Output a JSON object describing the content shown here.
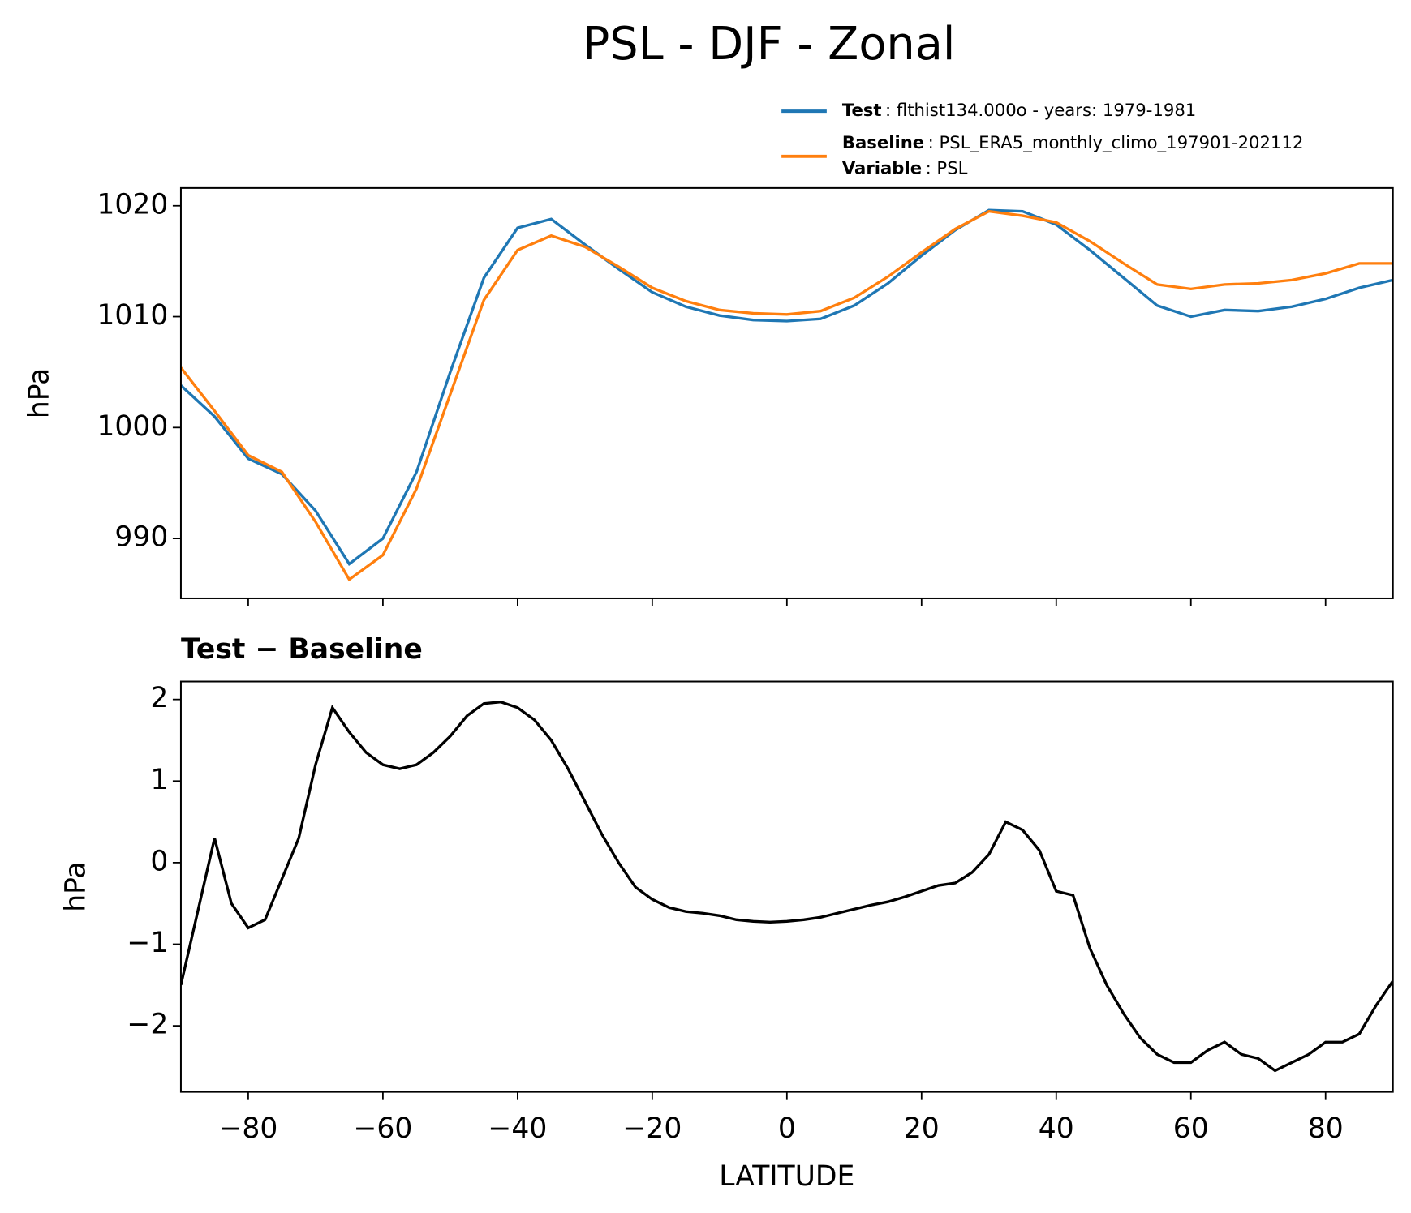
{
  "chart_data": [
    {
      "type": "line",
      "title": "PSL - DJF - Zonal",
      "ylabel": "hPa",
      "x": [
        -90,
        -85,
        -80,
        -75,
        -70,
        -65,
        -60,
        -55,
        -50,
        -45,
        -40,
        -35,
        -30,
        -25,
        -20,
        -15,
        -10,
        -5,
        0,
        5,
        10,
        15,
        20,
        25,
        30,
        35,
        40,
        45,
        50,
        55,
        60,
        65,
        70,
        75,
        80,
        85,
        90
      ],
      "series": [
        {
          "name": "Test",
          "color": "#1f77b4",
          "legend_lines": [
            {
              "key": "Test",
              "text": ": flthist134.000o - years: 1979-1981"
            }
          ],
          "values": [
            1003.8,
            1001,
            997.2,
            995.8,
            992.5,
            987.7,
            990,
            996,
            1005,
            1013.5,
            1018,
            1018.8,
            1016.5,
            1014.3,
            1012.2,
            1010.9,
            1010.1,
            1009.7,
            1009.6,
            1009.8,
            1011,
            1013,
            1015.5,
            1017.8,
            1019.6,
            1019.5,
            1018.3,
            1016,
            1013.5,
            1011,
            1010,
            1010.6,
            1010.5,
            1010.9,
            1011.6,
            1012.6,
            1013.3
          ]
        },
        {
          "name": "Baseline",
          "color": "#ff7f0e",
          "legend_lines": [
            {
              "key": "Baseline",
              "text": ": PSL_ERA5_monthly_climo_197901-202112"
            },
            {
              "key": "Variable",
              "text": ": PSL"
            }
          ],
          "values": [
            1005.4,
            1001.5,
            997.5,
            996,
            991.5,
            986.3,
            988.5,
            994.5,
            1003,
            1011.5,
            1016,
            1017.3,
            1016.3,
            1014.5,
            1012.6,
            1011.4,
            1010.6,
            1010.3,
            1010.2,
            1010.5,
            1011.7,
            1013.6,
            1015.8,
            1017.9,
            1019.5,
            1019.1,
            1018.5,
            1016.8,
            1014.8,
            1012.9,
            1012.5,
            1012.9,
            1013.0,
            1013.3,
            1013.9,
            1014.8,
            1014.8
          ]
        }
      ],
      "xlim": [
        -90,
        90
      ],
      "xticks": [
        -80,
        -60,
        -40,
        -20,
        0,
        20,
        40,
        60,
        80
      ],
      "ylim": [
        984.6,
        1021.6
      ],
      "yticks": [
        990,
        1000,
        1010,
        1020
      ]
    },
    {
      "type": "line",
      "title": "Test − Baseline",
      "ylabel": "hPa",
      "xlabel": "LATITUDE",
      "x": [
        -90,
        -87.5,
        -85,
        -82.5,
        -80,
        -77.5,
        -75,
        -72.5,
        -70,
        -67.5,
        -65,
        -62.5,
        -60,
        -57.5,
        -55,
        -52.5,
        -50,
        -47.5,
        -45,
        -42.5,
        -40,
        -37.5,
        -35,
        -32.5,
        -30,
        -27.5,
        -25,
        -22.5,
        -20,
        -17.5,
        -15,
        -12.5,
        -10,
        -7.5,
        -5,
        -2.5,
        0,
        2.5,
        5,
        7.5,
        10,
        12.5,
        15,
        17.5,
        20,
        22.5,
        25,
        27.5,
        30,
        32.5,
        35,
        37.5,
        40,
        42.5,
        45,
        47.5,
        50,
        52.5,
        55,
        57.5,
        60,
        62.5,
        65,
        67.5,
        70,
        72.5,
        75,
        77.5,
        80,
        82.5,
        85,
        87.5,
        90
      ],
      "series": [
        {
          "name": "Test − Baseline",
          "color": "#000000",
          "values": [
            -1.5,
            -0.6,
            0.3,
            -0.5,
            -0.8,
            -0.7,
            -0.2,
            0.3,
            1.2,
            1.9,
            1.6,
            1.35,
            1.2,
            1.15,
            1.2,
            1.35,
            1.55,
            1.8,
            1.95,
            1.97,
            1.9,
            1.75,
            1.5,
            1.15,
            0.75,
            0.35,
            0,
            -0.3,
            -0.45,
            -0.55,
            -0.6,
            -0.62,
            -0.65,
            -0.7,
            -0.72,
            -0.73,
            -0.72,
            -0.7,
            -0.67,
            -0.62,
            -0.57,
            -0.52,
            -0.48,
            -0.42,
            -0.35,
            -0.28,
            -0.25,
            -0.12,
            0.1,
            0.5,
            0.4,
            0.15,
            -0.35,
            -0.4,
            -1.05,
            -1.5,
            -1.85,
            -2.15,
            -2.35,
            -2.45,
            -2.45,
            -2.3,
            -2.2,
            -2.35,
            -2.4,
            -2.55,
            -2.45,
            -2.35,
            -2.2,
            -2.2,
            -2.1,
            -1.75,
            -1.45
          ]
        }
      ],
      "xlim": [
        -90,
        90
      ],
      "xticks": [
        {
          "value": -80,
          "label": "−80"
        },
        {
          "value": -60,
          "label": "−60"
        },
        {
          "value": -40,
          "label": "−40"
        },
        {
          "value": -20,
          "label": "−20"
        },
        0,
        20,
        40,
        60,
        80
      ],
      "ylim": [
        -2.81,
        2.22
      ],
      "yticks": [
        {
          "value": -2,
          "label": "−2"
        },
        {
          "value": -1,
          "label": "−1"
        },
        0,
        1,
        2
      ]
    }
  ]
}
